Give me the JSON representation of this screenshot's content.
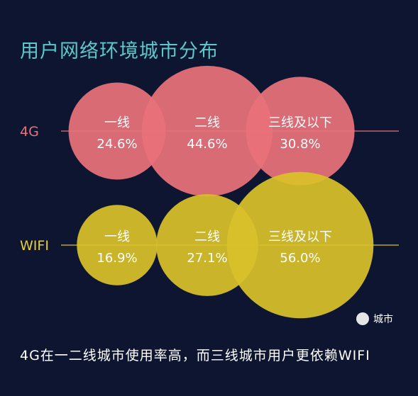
{
  "chart_data": {
    "type": "bubble",
    "title": "用户网络环境城市分布",
    "legend": {
      "label": "城市",
      "color": "#e6e6e6",
      "placement": "bottom-right"
    },
    "series": [
      {
        "name": "4G",
        "color": "#e8727a",
        "label_color": "#e8727a",
        "line_color": "#e8727a",
        "points": [
          {
            "category": "一线",
            "value": "24.6%",
            "share": 24.6
          },
          {
            "category": "二线",
            "value": "44.6%",
            "share": 44.6
          },
          {
            "category": "三线及以下",
            "value": "30.8%",
            "share": 30.8
          }
        ]
      },
      {
        "name": "WIFI",
        "color": "#d9c12a",
        "label_color": "#e6cf3a",
        "line_color": "#d9c12a",
        "points": [
          {
            "category": "一线",
            "value": "16.9%",
            "share": 16.9
          },
          {
            "category": "二线",
            "value": "27.1%",
            "share": 27.1
          },
          {
            "category": "三线及以下",
            "value": "56.0%",
            "share": 56.0
          }
        ]
      }
    ]
  },
  "caption": "4G在一二线城市使用率高，而三线城市用户更依赖WIFI"
}
